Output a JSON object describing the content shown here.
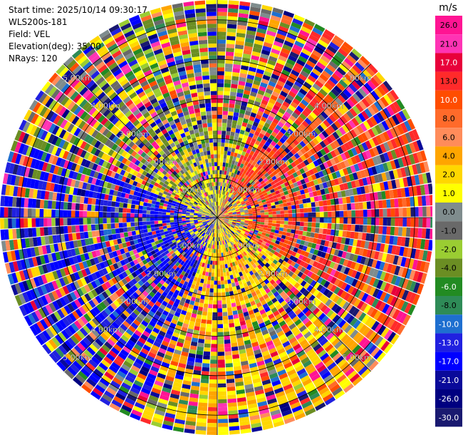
{
  "header": {
    "start_time": "Start time: 2025/10/14 09:30:17",
    "instrument": "WLS200s-181",
    "field": "Field: VEL",
    "elevation": "Elevation(deg): 35.00",
    "nrays": "NRays: 120"
  },
  "colorbar": {
    "unit": "m/s",
    "ticks": [
      "26.0",
      "21.0",
      "17.0",
      "13.0",
      "10.0",
      "8.0",
      "6.0",
      "4.0",
      "2.0",
      "1.0",
      "0.0",
      "-1.0",
      "-2.0",
      "-4.0",
      "-6.0",
      "-8.0",
      "-10.0",
      "-13.0",
      "-17.0",
      "-21.0",
      "-26.0",
      "-30.0"
    ],
    "colors": [
      "#ff1493",
      "#ff33b4",
      "#e8003a",
      "#ff2a2a",
      "#ff4d00",
      "#ff6a2a",
      "#ff8c5a",
      "#ffa500",
      "#ffd700",
      "#ffff00",
      "#7f8c8d",
      "#696969",
      "#9acd32",
      "#6b8e23",
      "#228b22",
      "#2e8b57",
      "#1e6fd0",
      "#2020e0",
      "#0000ff",
      "#0a0a9a",
      "#000080",
      "#191970"
    ]
  },
  "chart_data": {
    "type": "ppi",
    "field": "VEL",
    "units": "m/s",
    "elevation_deg": 35.0,
    "nrays": 120,
    "range_max_km": 5.5,
    "range_rings_km": [
      1,
      2,
      3,
      4,
      5
    ],
    "ring_labels": [
      "1.00km",
      "2.00km",
      "3.00km",
      "4.00km",
      "5.00km"
    ],
    "colormap_levels": [
      26,
      21,
      17,
      13,
      10,
      8,
      6,
      4,
      2,
      1,
      0,
      -1,
      -2,
      -4,
      -6,
      -8,
      -10,
      -13,
      -17,
      -21,
      -26,
      -30
    ],
    "dominant_pattern": {
      "near_range_km": [
        0,
        1.5
      ],
      "northeast_azimuth_deg": [
        20,
        120
      ],
      "northeast_velocity_ms": [
        8,
        17
      ],
      "southwest_azimuth_deg": [
        200,
        290
      ],
      "southwest_velocity_ms": [
        -17,
        -10
      ],
      "southeast_velocity_ms": [
        1,
        6
      ]
    }
  }
}
